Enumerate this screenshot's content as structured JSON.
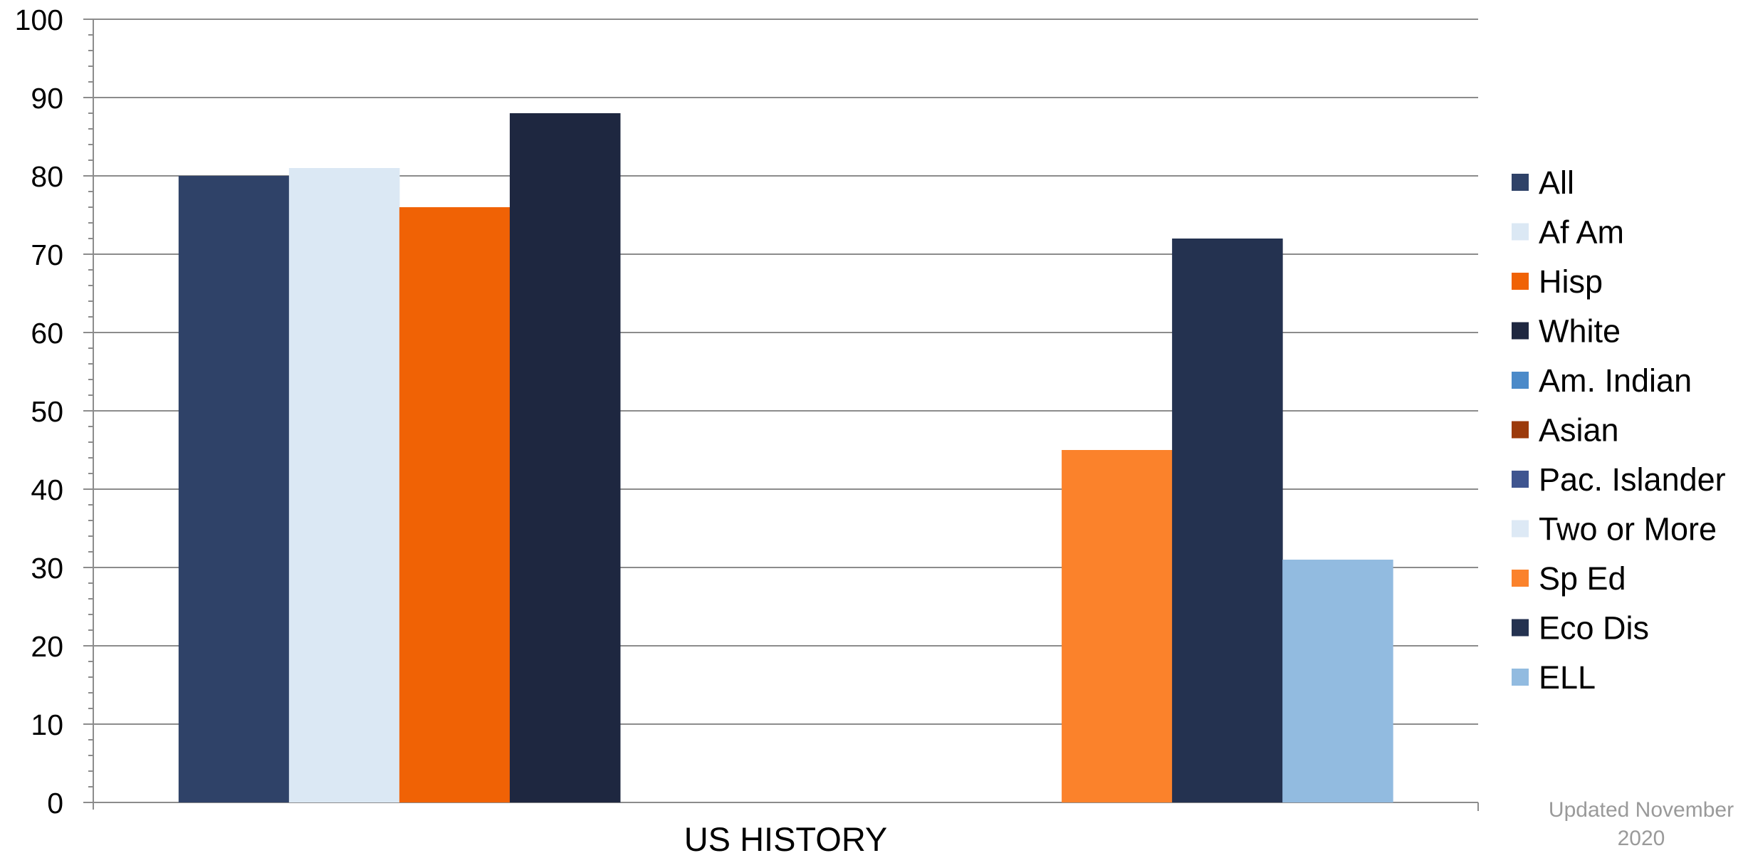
{
  "chart_data": {
    "type": "bar",
    "categories": [
      "US HISTORY"
    ],
    "ylim": [
      0,
      100
    ],
    "yticks": [
      0,
      10,
      20,
      30,
      40,
      50,
      60,
      70,
      80,
      90,
      100
    ],
    "grid": true,
    "legend_position": "right",
    "series": [
      {
        "name": "All",
        "color": "#2f4268",
        "values": [
          80
        ]
      },
      {
        "name": "Af Am",
        "color": "#dbe8f4",
        "values": [
          81
        ]
      },
      {
        "name": "Hisp",
        "color": "#f06205",
        "values": [
          76
        ]
      },
      {
        "name": "White",
        "color": "#1e2740",
        "values": [
          88
        ]
      },
      {
        "name": "Am. Indian",
        "color": "#4b8ac9",
        "values": [
          null
        ]
      },
      {
        "name": "Asian",
        "color": "#9c3a0b",
        "values": [
          null
        ]
      },
      {
        "name": "Pac. Islander",
        "color": "#3f5590",
        "values": [
          null
        ]
      },
      {
        "name": "Two or More",
        "color": "#dde9f5",
        "values": [
          null
        ]
      },
      {
        "name": "Sp Ed",
        "color": "#fb822b",
        "values": [
          45
        ]
      },
      {
        "name": "Eco Dis",
        "color": "#243250",
        "values": [
          72
        ]
      },
      {
        "name": "ELL",
        "color": "#92bbe0",
        "values": [
          31
        ]
      }
    ]
  },
  "note": {
    "line1": "Updated November",
    "line2": "2020"
  }
}
